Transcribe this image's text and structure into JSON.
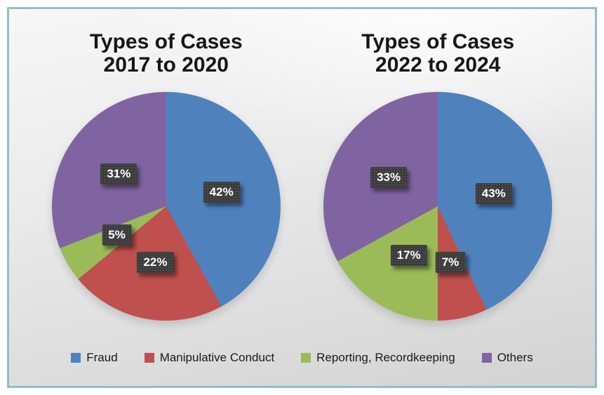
{
  "figure": {
    "border_color": "#94bcc6",
    "label_box_color": "#3b3b3b",
    "label_text_color": "#ffffff"
  },
  "chart_data": [
    {
      "type": "pie",
      "title_line1": "Types of Cases",
      "title_line2": "2017 to 2020",
      "categories": [
        "Fraud",
        "Manipulative Conduct",
        "Reporting, Recordkeeping",
        "Others"
      ],
      "values": [
        42,
        22,
        5,
        31
      ],
      "labels": [
        "42%",
        "22%",
        "5%",
        "31%"
      ],
      "colors": [
        "#4F81BD",
        "#C0504D",
        "#9BBB59",
        "#8064A2"
      ],
      "start_angle_deg": 0,
      "direction": "clockwise",
      "legend_position": "bottom-shared"
    },
    {
      "type": "pie",
      "title_line1": "Types of Cases",
      "title_line2": "2022 to 2024",
      "categories": [
        "Fraud",
        "Manipulative Conduct",
        "Reporting, Recordkeeping",
        "Others"
      ],
      "values": [
        43,
        7,
        17,
        33
      ],
      "labels": [
        "43%",
        "7%",
        "17%",
        "33%"
      ],
      "colors": [
        "#4F81BD",
        "#C0504D",
        "#9BBB59",
        "#8064A2"
      ],
      "start_angle_deg": 0,
      "direction": "clockwise",
      "legend_position": "bottom-shared"
    }
  ],
  "legend": {
    "items": [
      {
        "label": "Fraud",
        "color": "#4F81BD"
      },
      {
        "label": "Manipulative Conduct",
        "color": "#C0504D"
      },
      {
        "label": "Reporting, Recordkeeping",
        "color": "#9BBB59"
      },
      {
        "label": "Others",
        "color": "#8064A2"
      }
    ]
  }
}
